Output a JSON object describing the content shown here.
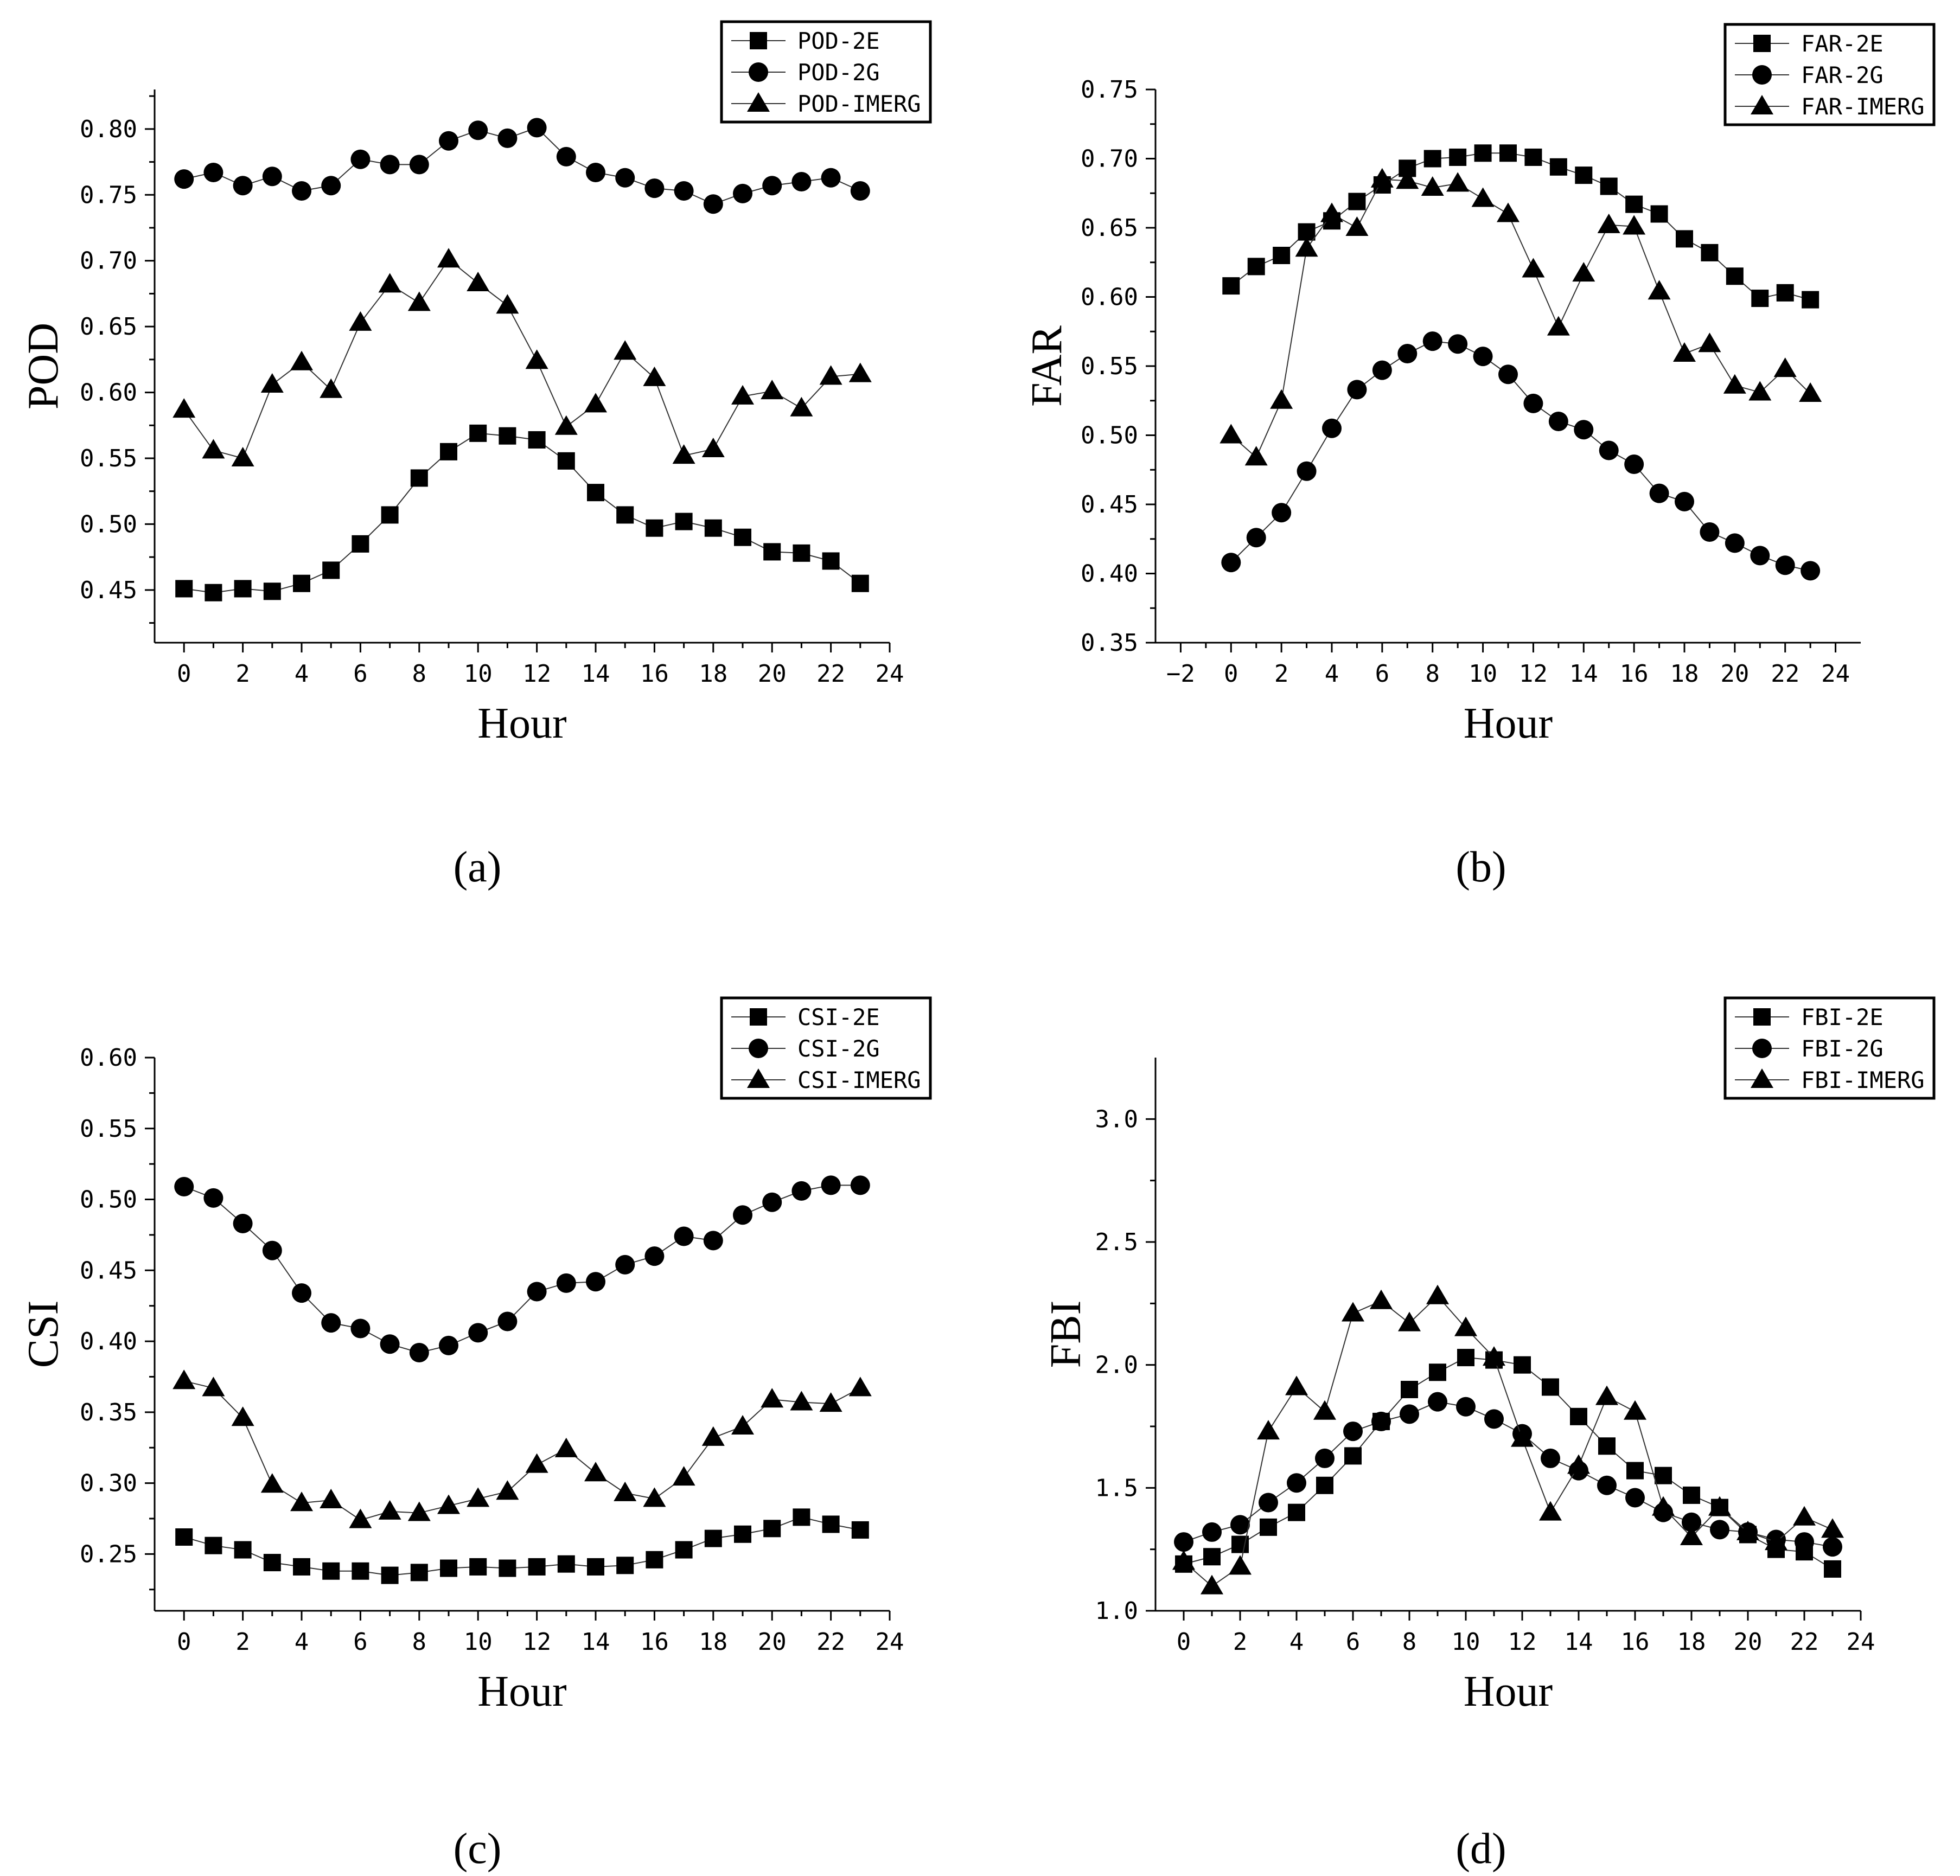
{
  "chart_data": [
    {
      "type": "line",
      "panel_label": "(a)",
      "xlabel": "Hour",
      "ylabel": "POD",
      "xlim": [
        -1,
        24
      ],
      "ylim": [
        0.41,
        0.83
      ],
      "xticks": [
        0,
        2,
        4,
        6,
        8,
        10,
        12,
        14,
        16,
        18,
        20,
        22,
        24
      ],
      "yticks": [
        0.45,
        0.5,
        0.55,
        0.6,
        0.65,
        0.7,
        0.75,
        0.8
      ],
      "ytick_labels": [
        "0.45",
        "0.50",
        "0.55",
        "0.60",
        "0.65",
        "0.70",
        "0.75",
        "0.80"
      ],
      "legend_position": "top-right",
      "x": [
        0,
        1,
        2,
        3,
        4,
        5,
        6,
        7,
        8,
        9,
        10,
        11,
        12,
        13,
        14,
        15,
        16,
        17,
        18,
        19,
        20,
        21,
        22,
        23
      ],
      "series": [
        {
          "name": "POD-2E",
          "marker": "square",
          "values": [
            0.451,
            0.448,
            0.451,
            0.449,
            0.455,
            0.465,
            0.485,
            0.507,
            0.535,
            0.555,
            0.569,
            0.567,
            0.564,
            0.548,
            0.524,
            0.507,
            0.497,
            0.502,
            0.497,
            0.49,
            0.479,
            0.478,
            0.472,
            0.455
          ]
        },
        {
          "name": "POD-2G",
          "marker": "circle",
          "values": [
            0.762,
            0.767,
            0.757,
            0.764,
            0.753,
            0.757,
            0.777,
            0.773,
            0.773,
            0.791,
            0.799,
            0.793,
            0.801,
            0.779,
            0.767,
            0.763,
            0.755,
            0.753,
            0.743,
            0.751,
            0.757,
            0.76,
            0.763,
            0.753
          ]
        },
        {
          "name": "POD-IMERG",
          "marker": "triangle",
          "values": [
            0.587,
            0.556,
            0.55,
            0.606,
            0.623,
            0.602,
            0.653,
            0.682,
            0.668,
            0.701,
            0.683,
            0.666,
            0.624,
            0.574,
            0.591,
            0.631,
            0.611,
            0.552,
            0.557,
            0.597,
            0.601,
            0.588,
            0.612,
            0.614
          ]
        }
      ]
    },
    {
      "type": "line",
      "panel_label": "(b)",
      "xlabel": "Hour",
      "ylabel": "FAR",
      "xlim": [
        -3,
        25
      ],
      "ylim": [
        0.35,
        0.75
      ],
      "xticks": [
        -2,
        0,
        2,
        4,
        6,
        8,
        10,
        12,
        14,
        16,
        18,
        20,
        22,
        24
      ],
      "yticks": [
        0.35,
        0.4,
        0.45,
        0.5,
        0.55,
        0.6,
        0.65,
        0.7,
        0.75
      ],
      "ytick_labels": [
        "0.35",
        "0.40",
        "0.45",
        "0.50",
        "0.55",
        "0.60",
        "0.65",
        "0.70",
        "0.75"
      ],
      "legend_position": "top-right",
      "x": [
        0,
        1,
        2,
        3,
        4,
        5,
        6,
        7,
        8,
        9,
        10,
        11,
        12,
        13,
        14,
        15,
        16,
        17,
        18,
        19,
        20,
        21,
        22,
        23
      ],
      "series": [
        {
          "name": "FAR-2E",
          "marker": "square",
          "values": [
            0.608,
            0.622,
            0.63,
            0.647,
            0.655,
            0.669,
            0.681,
            0.693,
            0.7,
            0.701,
            0.704,
            0.704,
            0.701,
            0.694,
            0.688,
            0.68,
            0.667,
            0.66,
            0.642,
            0.632,
            0.615,
            0.599,
            0.603,
            0.598
          ]
        },
        {
          "name": "FAR-2G",
          "marker": "circle",
          "values": [
            0.408,
            0.426,
            0.444,
            0.474,
            0.505,
            0.533,
            0.547,
            0.559,
            0.568,
            0.566,
            0.557,
            0.544,
            0.523,
            0.51,
            0.504,
            0.489,
            0.479,
            0.458,
            0.452,
            0.43,
            0.422,
            0.413,
            0.406,
            0.402
          ]
        },
        {
          "name": "FAR-IMERG",
          "marker": "triangle",
          "values": [
            0.5,
            0.484,
            0.525,
            0.635,
            0.66,
            0.65,
            0.685,
            0.684,
            0.679,
            0.682,
            0.671,
            0.66,
            0.62,
            0.578,
            0.617,
            0.652,
            0.651,
            0.604,
            0.559,
            0.566,
            0.536,
            0.531,
            0.548,
            0.53
          ]
        }
      ]
    },
    {
      "type": "line",
      "panel_label": "(c)",
      "xlabel": "Hour",
      "ylabel": "CSI",
      "xlim": [
        -1,
        24
      ],
      "ylim": [
        0.21,
        0.6
      ],
      "xticks": [
        0,
        2,
        4,
        6,
        8,
        10,
        12,
        14,
        16,
        18,
        20,
        22,
        24
      ],
      "yticks": [
        0.25,
        0.3,
        0.35,
        0.4,
        0.45,
        0.5,
        0.55,
        0.6
      ],
      "ytick_labels": [
        "0.25",
        "0.30",
        "0.35",
        "0.40",
        "0.45",
        "0.50",
        "0.55",
        "0.60"
      ],
      "legend_position": "top-right",
      "x": [
        0,
        1,
        2,
        3,
        4,
        5,
        6,
        7,
        8,
        9,
        10,
        11,
        12,
        13,
        14,
        15,
        16,
        17,
        18,
        19,
        20,
        21,
        22,
        23
      ],
      "series": [
        {
          "name": "CSI-2E",
          "marker": "square",
          "values": [
            0.262,
            0.256,
            0.253,
            0.244,
            0.241,
            0.238,
            0.238,
            0.235,
            0.237,
            0.24,
            0.241,
            0.24,
            0.241,
            0.243,
            0.241,
            0.242,
            0.246,
            0.253,
            0.261,
            0.264,
            0.268,
            0.276,
            0.271,
            0.267
          ]
        },
        {
          "name": "CSI-2G",
          "marker": "circle",
          "values": [
            0.509,
            0.501,
            0.483,
            0.464,
            0.434,
            0.413,
            0.409,
            0.398,
            0.392,
            0.397,
            0.406,
            0.414,
            0.435,
            0.441,
            0.442,
            0.454,
            0.46,
            0.474,
            0.471,
            0.489,
            0.498,
            0.506,
            0.51,
            0.51
          ]
        },
        {
          "name": "CSI-IMERG",
          "marker": "triangle",
          "values": [
            0.372,
            0.367,
            0.346,
            0.299,
            0.286,
            0.288,
            0.274,
            0.28,
            0.279,
            0.284,
            0.289,
            0.294,
            0.313,
            0.324,
            0.307,
            0.293,
            0.289,
            0.304,
            0.332,
            0.34,
            0.359,
            0.357,
            0.356,
            0.367
          ]
        }
      ]
    },
    {
      "type": "line",
      "panel_label": "(d)",
      "xlabel": "Hour",
      "ylabel": "FBI",
      "xlim": [
        -1,
        24
      ],
      "ylim": [
        1.0,
        3.25
      ],
      "xticks": [
        0,
        2,
        4,
        6,
        8,
        10,
        12,
        14,
        16,
        18,
        20,
        22,
        24
      ],
      "yticks": [
        1.0,
        1.5,
        2.0,
        2.5,
        3.0
      ],
      "ytick_labels": [
        "1.0",
        "1.5",
        "2.0",
        "2.5",
        "3.0"
      ],
      "legend_position": "top-right",
      "x": [
        0,
        1,
        2,
        3,
        4,
        5,
        6,
        7,
        8,
        9,
        10,
        11,
        12,
        13,
        14,
        15,
        16,
        17,
        18,
        19,
        20,
        21,
        22,
        23
      ],
      "series": [
        {
          "name": "FBI-2E",
          "marker": "square",
          "values": [
            1.19,
            1.22,
            1.27,
            1.34,
            1.4,
            1.51,
            1.63,
            1.77,
            1.9,
            1.97,
            2.03,
            2.02,
            2.0,
            1.91,
            1.79,
            1.67,
            1.57,
            1.55,
            1.47,
            1.42,
            1.31,
            1.25,
            1.24,
            1.17
          ]
        },
        {
          "name": "FBI-2G",
          "marker": "circle",
          "values": [
            1.28,
            1.32,
            1.35,
            1.44,
            1.52,
            1.62,
            1.73,
            1.77,
            1.8,
            1.85,
            1.83,
            1.78,
            1.72,
            1.62,
            1.57,
            1.51,
            1.46,
            1.4,
            1.36,
            1.33,
            1.32,
            1.29,
            1.28,
            1.26
          ]
        },
        {
          "name": "FBI-IMERG",
          "marker": "triangle",
          "values": [
            1.2,
            1.1,
            1.18,
            1.73,
            1.91,
            1.81,
            2.21,
            2.26,
            2.17,
            2.28,
            2.15,
            2.03,
            1.7,
            1.4,
            1.59,
            1.87,
            1.81,
            1.42,
            1.3,
            1.42,
            1.32,
            1.28,
            1.38,
            1.33
          ]
        }
      ]
    }
  ]
}
